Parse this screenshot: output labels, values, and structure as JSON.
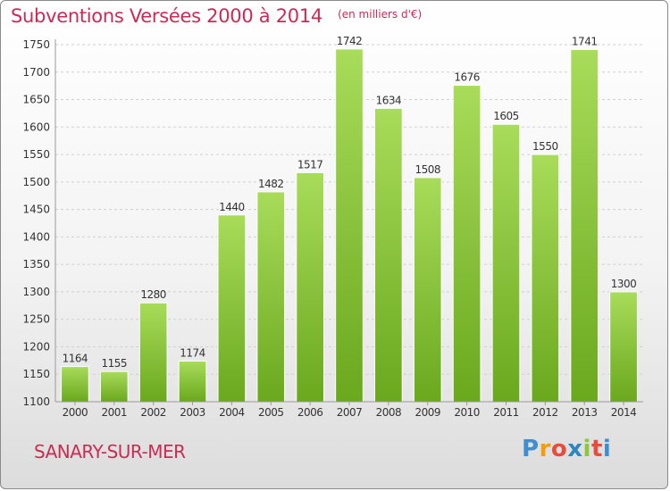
{
  "header": {
    "title": "Subventions Versées 2000 à 2014",
    "subtitle": "(en milliers d'€)"
  },
  "footer": {
    "commune": "SANARY-SUR-MER",
    "logo_text": "Proxiti"
  },
  "colors": {
    "accent": "#cc2a55",
    "bar_light": "#a8dc5a",
    "bar_dark": "#6aa81e",
    "grid": "#d0d0d0"
  },
  "chart_data": {
    "type": "bar",
    "title": "Subventions Versées 2000 à 2014",
    "subtitle": "(en milliers d'€)",
    "xlabel": "",
    "ylabel": "",
    "categories": [
      "2000",
      "2001",
      "2002",
      "2003",
      "2004",
      "2005",
      "2006",
      "2007",
      "2008",
      "2009",
      "2010",
      "2011",
      "2012",
      "2013",
      "2014"
    ],
    "values": [
      1164,
      1155,
      1280,
      1174,
      1440,
      1482,
      1517,
      1742,
      1634,
      1508,
      1676,
      1605,
      1550,
      1741,
      1300
    ],
    "ylim": [
      1100,
      1750
    ],
    "yticks": [
      1100,
      1150,
      1200,
      1250,
      1300,
      1350,
      1400,
      1450,
      1500,
      1550,
      1600,
      1650,
      1700,
      1750
    ],
    "grid": "horizontal dashed",
    "legend": "none",
    "data_labels": true
  }
}
